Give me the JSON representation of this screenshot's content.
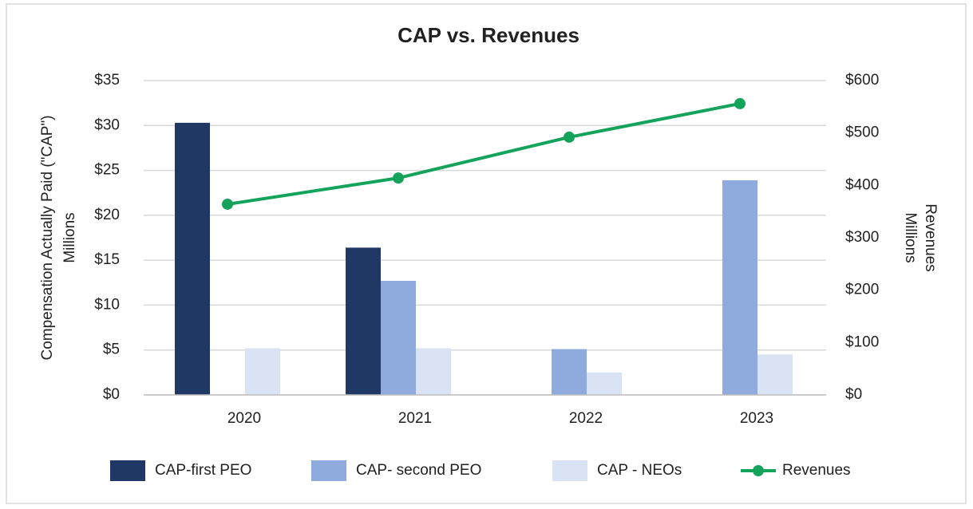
{
  "chart_data": {
    "type": "bar",
    "title": "CAP vs. Revenues",
    "ylabel": "Compensation Actually Paid (\"CAP\")",
    "ylabel_units": "Millions",
    "y2label": "Revenues",
    "y2label_units": "Millions",
    "categories": [
      "2020",
      "2021",
      "2022",
      "2023"
    ],
    "series": [
      {
        "name": "CAP-first PEO",
        "color": "#203864",
        "type": "bar",
        "values": [
          30.3,
          16.4,
          null,
          null
        ]
      },
      {
        "name": "CAP- second PEO",
        "color": "#8faadc",
        "type": "bar",
        "values": [
          null,
          12.7,
          5.1,
          23.9
        ]
      },
      {
        "name": "CAP - NEOs",
        "color": "#dae3f3",
        "type": "bar",
        "values": [
          5.2,
          5.2,
          2.5,
          4.5
        ]
      },
      {
        "name": "Revenues",
        "color": "#14a35a",
        "type": "line",
        "axis": "y2",
        "values": [
          364,
          414,
          492,
          556
        ]
      }
    ],
    "ylim": [
      0,
      35
    ],
    "yticks": [
      {
        "value": 0,
        "label": "$0"
      },
      {
        "value": 5,
        "label": "$5"
      },
      {
        "value": 10,
        "label": "$10"
      },
      {
        "value": 15,
        "label": "$15"
      },
      {
        "value": 20,
        "label": "$20"
      },
      {
        "value": 25,
        "label": "$25"
      },
      {
        "value": 30,
        "label": "$30"
      },
      {
        "value": 35,
        "label": "$35"
      }
    ],
    "y2lim": [
      0,
      600
    ],
    "y2ticks": [
      {
        "value": 0,
        "label": "$0"
      },
      {
        "value": 100,
        "label": "$100"
      },
      {
        "value": 200,
        "label": "$200"
      },
      {
        "value": 300,
        "label": "$300"
      },
      {
        "value": 400,
        "label": "$400"
      },
      {
        "value": 500,
        "label": "$500"
      },
      {
        "value": 600,
        "label": "$600"
      }
    ],
    "grid": true,
    "legend": "bottom"
  }
}
